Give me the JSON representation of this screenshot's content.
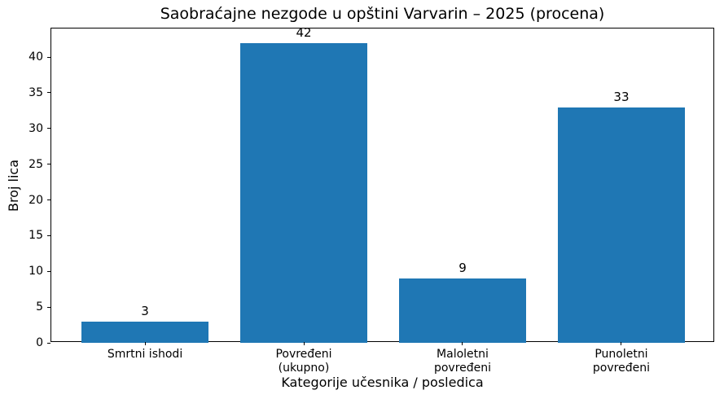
{
  "chart_data": {
    "type": "bar",
    "title": "Saobraćajne nezgode u opštini Varvarin – 2025 (procena)",
    "xlabel": "Kategorije učesnika / posledica",
    "ylabel": "Broj lica",
    "categories": [
      "Smrtni ishodi",
      "Povređeni\n(ukupno)",
      "Maloletni\npovređeni",
      "Punoletni\npovređeni"
    ],
    "values": [
      3,
      42,
      9,
      33
    ],
    "bar_labels": [
      "3",
      "42",
      "9",
      "33"
    ],
    "ylim": [
      0,
      44
    ],
    "yticks": [
      0,
      5,
      10,
      15,
      20,
      25,
      30,
      35,
      40
    ],
    "bar_width_fraction": 0.8,
    "bar_color": "#1f77b4",
    "text_color": "#000000",
    "grid": false,
    "legend_position": "none"
  }
}
